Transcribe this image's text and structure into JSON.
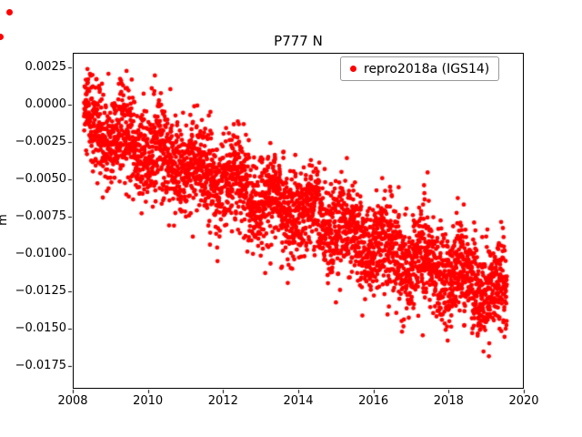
{
  "figure": {
    "title": "P777 N",
    "ylabel": "m",
    "legend_label": "repro2018a (IGS14)",
    "xtick_labels": [
      "2008",
      "2010",
      "2012",
      "2014",
      "2016",
      "2018",
      "2020"
    ],
    "ytick_labels": [
      "0.0025",
      "0.0000",
      "−0.0025",
      "−0.0050",
      "−0.0075",
      "−0.0100",
      "−0.0125",
      "−0.0150",
      "−0.0175"
    ]
  },
  "colors": {
    "marker": "#ff0000",
    "axes": "#000000",
    "legend_border": "#999999"
  },
  "chart_data": {
    "type": "scatter",
    "title": "P777 N",
    "xlabel": "",
    "ylabel": "m",
    "legend": [
      "repro2018a (IGS14)"
    ],
    "legend_position": "upper right",
    "grid": false,
    "xlim": [
      2008,
      2020
    ],
    "ylim": [
      -0.019,
      0.0035
    ],
    "xticks": [
      2008,
      2010,
      2012,
      2014,
      2016,
      2018,
      2020
    ],
    "yticks": [
      0.0025,
      0.0,
      -0.0025,
      -0.005,
      -0.0075,
      -0.01,
      -0.0125,
      -0.015,
      -0.0175
    ],
    "series": [
      {
        "name": "repro2018a (IGS14)",
        "color": "#ff0000",
        "marker": "dot",
        "x_start": 2008.3,
        "x_end": 2019.55,
        "n_points": 3600,
        "trend_value_at_start": -0.0013,
        "trend_value_at_end": -0.0128,
        "annual_amplitude": 0.0007,
        "noise_std": 0.0016,
        "seed": 12345
      }
    ]
  }
}
